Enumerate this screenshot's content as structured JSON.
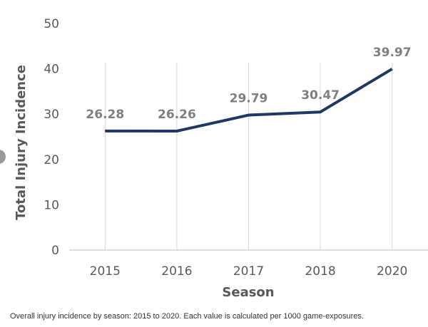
{
  "chart_data": {
    "type": "line",
    "categories": [
      "2015",
      "2016",
      "2017",
      "2018",
      "2020"
    ],
    "series": [
      {
        "values": [
          26.28,
          26.26,
          29.79,
          30.47,
          39.97
        ],
        "color": "#1f3864"
      }
    ],
    "data_labels": [
      "26.28",
      "26.26",
      "29.79",
      "30.47",
      "39.97"
    ],
    "xlabel": "Season",
    "ylabel": "Total Injury Incidence",
    "ylim": [
      0,
      50
    ],
    "yticks": [
      "0",
      "10",
      "20",
      "30",
      "40",
      "50"
    ],
    "grid": "vertical",
    "legend": "none"
  },
  "caption": "Overall injury incidence by season: 2015 to 2020. Each value is calculated per 1000 game-exposures."
}
